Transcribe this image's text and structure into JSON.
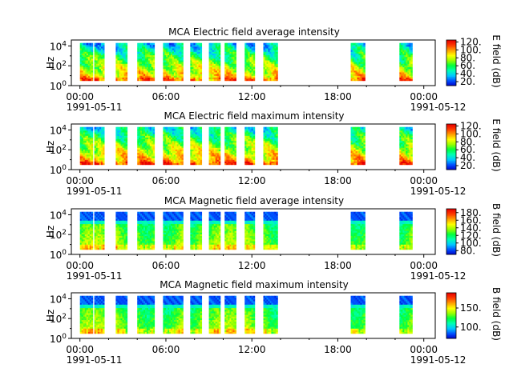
{
  "colormap": [
    "#0000c8",
    "#0050ff",
    "#00c8ff",
    "#00ffb4",
    "#00ff3c",
    "#96ff00",
    "#ffff00",
    "#ffa000",
    "#ff3c00",
    "#e60000"
  ],
  "chart_data": [
    {
      "type": "heatmap",
      "title": "MCA  Electric field average intensity",
      "ylabel": "Hz",
      "colorbar_label": "E field (dB)",
      "colorbar_range": [
        10,
        125
      ],
      "colorbar_ticks": [
        20,
        40,
        60,
        80,
        100,
        120
      ],
      "colorbar_tick_labels": [
        "20.",
        "40.",
        "60.",
        "80.",
        "100.",
        "120."
      ],
      "x_ticks": [
        "00:00",
        "06:00",
        "12:00",
        "18:00",
        "00:00"
      ],
      "x_start_date": "1991-05-11",
      "x_end_date": "1991-05-12",
      "x_range_hours": [
        -0.6,
        24.8
      ],
      "y_ticks": [
        "10^0",
        "10^2",
        "10^4"
      ],
      "y_range_log10": [
        0,
        4.6
      ],
      "data_range_log10": [
        0.5,
        4.3
      ],
      "intervals_hours": [
        [
          0.0,
          0.9
        ],
        [
          1.0,
          1.7
        ],
        [
          2.5,
          3.3
        ],
        [
          4.0,
          5.2
        ],
        [
          5.8,
          7.2
        ],
        [
          7.7,
          8.5
        ],
        [
          9.0,
          9.8
        ],
        [
          10.1,
          10.9
        ],
        [
          11.5,
          12.2
        ],
        [
          12.8,
          13.8
        ],
        [
          18.9,
          19.9
        ],
        [
          22.3,
          23.2
        ]
      ],
      "field": "electric"
    },
    {
      "type": "heatmap",
      "title": "MCA  Electric field maximum intensity",
      "ylabel": "Hz",
      "colorbar_label": "E field (dB)",
      "colorbar_range": [
        10,
        125
      ],
      "colorbar_ticks": [
        20,
        40,
        60,
        80,
        100,
        120
      ],
      "colorbar_tick_labels": [
        "20.",
        "40.",
        "60.",
        "80.",
        "100.",
        "120."
      ],
      "x_ticks": [
        "00:00",
        "06:00",
        "12:00",
        "18:00",
        "00:00"
      ],
      "x_start_date": "1991-05-11",
      "x_end_date": "1991-05-12",
      "x_range_hours": [
        -0.6,
        24.8
      ],
      "y_ticks": [
        "10^0",
        "10^2",
        "10^4"
      ],
      "y_range_log10": [
        0,
        4.6
      ],
      "data_range_log10": [
        0.5,
        4.3
      ],
      "intervals_hours": [
        [
          0.0,
          0.9
        ],
        [
          1.0,
          1.7
        ],
        [
          2.5,
          3.3
        ],
        [
          4.0,
          5.2
        ],
        [
          5.8,
          7.2
        ],
        [
          7.7,
          8.5
        ],
        [
          9.0,
          9.8
        ],
        [
          10.1,
          10.9
        ],
        [
          11.5,
          12.2
        ],
        [
          12.8,
          13.8
        ],
        [
          18.9,
          19.9
        ],
        [
          22.3,
          23.2
        ]
      ],
      "field": "electric"
    },
    {
      "type": "heatmap",
      "title": "MCA  Magnetic field average intensity",
      "ylabel": "Hz",
      "colorbar_label": "B field (dB)",
      "colorbar_range": [
        70,
        190
      ],
      "colorbar_ticks": [
        80,
        100,
        120,
        140,
        160,
        180
      ],
      "colorbar_tick_labels": [
        "80.",
        "100.",
        "120.",
        "140.",
        "160.",
        "180."
      ],
      "x_ticks": [
        "00:00",
        "06:00",
        "12:00",
        "18:00",
        "00:00"
      ],
      "x_start_date": "1991-05-11",
      "x_end_date": "1991-05-12",
      "x_range_hours": [
        -0.6,
        24.8
      ],
      "y_ticks": [
        "10^0",
        "10^2",
        "10^4"
      ],
      "y_range_log10": [
        0,
        4.6
      ],
      "data_range_log10": [
        0.5,
        4.3
      ],
      "intervals_hours": [
        [
          0.0,
          0.9
        ],
        [
          1.0,
          1.7
        ],
        [
          2.5,
          3.3
        ],
        [
          4.0,
          5.2
        ],
        [
          5.8,
          7.2
        ],
        [
          7.7,
          8.5
        ],
        [
          9.0,
          9.8
        ],
        [
          10.1,
          10.9
        ],
        [
          11.5,
          12.2
        ],
        [
          12.8,
          13.8
        ],
        [
          18.9,
          19.9
        ],
        [
          22.3,
          23.2
        ]
      ],
      "field": "magnetic"
    },
    {
      "type": "heatmap",
      "title": "MCA  Magnetic field maximum intensity",
      "ylabel": "Hz",
      "colorbar_label": "B field (dB)",
      "colorbar_range": [
        70,
        190
      ],
      "colorbar_ticks": [
        100,
        150
      ],
      "colorbar_tick_labels": [
        "100.",
        "150."
      ],
      "x_ticks": [
        "00:00",
        "06:00",
        "12:00",
        "18:00",
        "00:00"
      ],
      "x_start_date": "1991-05-11",
      "x_end_date": "1991-05-12",
      "x_range_hours": [
        -0.6,
        24.8
      ],
      "y_ticks": [
        "10^0",
        "10^2",
        "10^4"
      ],
      "y_range_log10": [
        0,
        4.6
      ],
      "data_range_log10": [
        0.5,
        4.3
      ],
      "intervals_hours": [
        [
          0.0,
          0.9
        ],
        [
          1.0,
          1.7
        ],
        [
          2.5,
          3.3
        ],
        [
          4.0,
          5.2
        ],
        [
          5.8,
          7.2
        ],
        [
          7.7,
          8.5
        ],
        [
          9.0,
          9.8
        ],
        [
          10.1,
          10.9
        ],
        [
          11.5,
          12.2
        ],
        [
          12.8,
          13.8
        ],
        [
          18.9,
          19.9
        ],
        [
          22.3,
          23.2
        ]
      ],
      "field": "magnetic"
    }
  ]
}
